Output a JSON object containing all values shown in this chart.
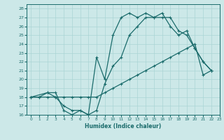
{
  "xlabel": "Humidex (Indice chaleur)",
  "bg_color": "#cce8e8",
  "grid_color": "#aad4d4",
  "line_color": "#1a6b6b",
  "xlim": [
    -0.5,
    23
  ],
  "ylim": [
    16,
    28.5
  ],
  "xticks": [
    0,
    1,
    2,
    3,
    4,
    5,
    6,
    7,
    8,
    9,
    10,
    11,
    12,
    13,
    14,
    15,
    16,
    17,
    18,
    19,
    20,
    21,
    22,
    23
  ],
  "yticks": [
    16,
    17,
    18,
    19,
    20,
    21,
    22,
    23,
    24,
    25,
    26,
    27,
    28
  ],
  "line1_x": [
    0,
    1,
    2,
    3,
    4,
    5,
    6,
    7,
    8,
    9,
    10,
    11,
    12,
    13,
    14,
    15,
    16,
    17,
    18,
    19,
    20,
    21,
    22
  ],
  "line1_y": [
    18,
    18,
    18.5,
    18,
    17,
    16.5,
    16.5,
    16,
    22.5,
    20,
    25,
    27,
    27.5,
    27,
    27.5,
    27,
    27,
    27,
    25.5,
    25,
    23.5,
    22,
    21
  ],
  "line2_x": [
    0,
    2,
    3,
    4,
    5,
    6,
    7,
    8,
    9,
    10,
    11,
    12,
    13,
    14,
    15,
    16,
    17,
    18,
    19,
    20,
    21,
    22
  ],
  "line2_y": [
    18,
    18.5,
    18.5,
    16.5,
    16,
    16.5,
    16,
    16.5,
    19.5,
    21.5,
    22.5,
    25,
    26,
    27,
    27,
    27.5,
    26,
    25,
    25.5,
    23.5,
    22,
    21
  ],
  "line3_x": [
    0,
    1,
    2,
    3,
    4,
    5,
    6,
    7,
    8,
    9,
    10,
    11,
    12,
    13,
    14,
    15,
    16,
    17,
    18,
    19,
    20,
    21,
    22
  ],
  "line3_y": [
    18,
    18,
    18,
    18,
    18,
    18,
    18,
    18,
    18,
    18.5,
    19,
    19.5,
    20,
    20.5,
    21,
    21.5,
    22,
    22.5,
    23,
    23.5,
    24,
    20.5,
    21
  ]
}
